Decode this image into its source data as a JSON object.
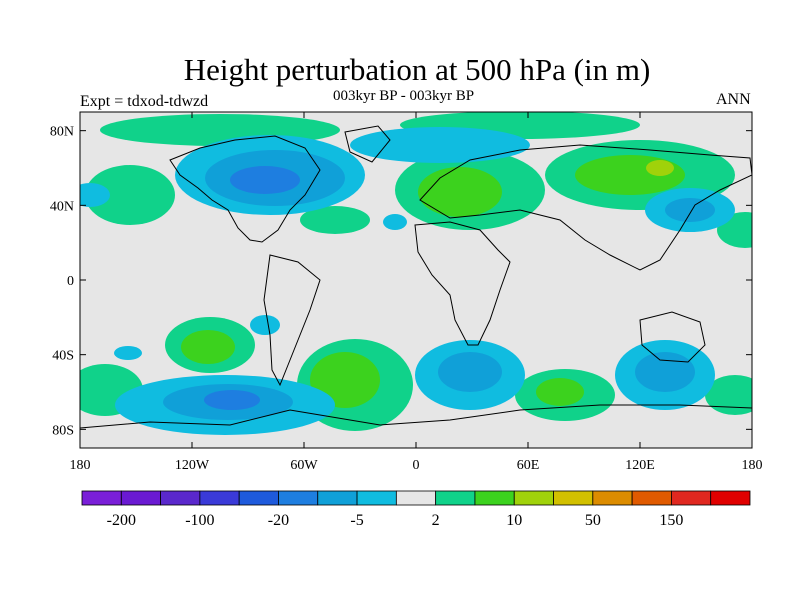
{
  "title": "Height perturbation at 500 hPa (in m)",
  "subtitle": "003kyr BP - 003kyr BP",
  "left_note": "Expt = tdxod-tdwzd",
  "right_note": "ANN",
  "map": {
    "lon_range": [
      -180,
      180
    ],
    "lat_range": [
      -90,
      90
    ],
    "background": "#e6e6e6",
    "x_ticks": [
      {
        "lon": -180,
        "label": "180"
      },
      {
        "lon": -120,
        "label": "120W"
      },
      {
        "lon": -60,
        "label": "60W"
      },
      {
        "lon": 0,
        "label": "0"
      },
      {
        "lon": 60,
        "label": "60E"
      },
      {
        "lon": 120,
        "label": "120E"
      },
      {
        "lon": 180,
        "label": "180"
      }
    ],
    "y_ticks": [
      {
        "lat": 80,
        "label": "80N"
      },
      {
        "lat": 40,
        "label": "40N"
      },
      {
        "lat": 0,
        "label": "0"
      },
      {
        "lat": -40,
        "label": "40S"
      },
      {
        "lat": -80,
        "label": "80S"
      }
    ]
  },
  "colorbar": {
    "colors": [
      "#7a1fd8",
      "#6a1ad2",
      "#5a28cc",
      "#3a3ad8",
      "#1e5adc",
      "#1e7ee0",
      "#10a0d8",
      "#10bce0",
      "#e6e6e6",
      "#10d28a",
      "#3cd21e",
      "#a0d20a",
      "#d2c000",
      "#dc8c00",
      "#e05a00",
      "#e02820",
      "#e00000"
    ],
    "labels": [
      {
        "edge": 1,
        "label": "-200"
      },
      {
        "edge": 3,
        "label": "-100"
      },
      {
        "edge": 5,
        "label": "-20"
      },
      {
        "edge": 7,
        "label": "-5"
      },
      {
        "edge": 9,
        "label": "2"
      },
      {
        "edge": 11,
        "label": "10"
      },
      {
        "edge": 13,
        "label": "50"
      },
      {
        "edge": 15,
        "label": "150"
      }
    ]
  }
}
